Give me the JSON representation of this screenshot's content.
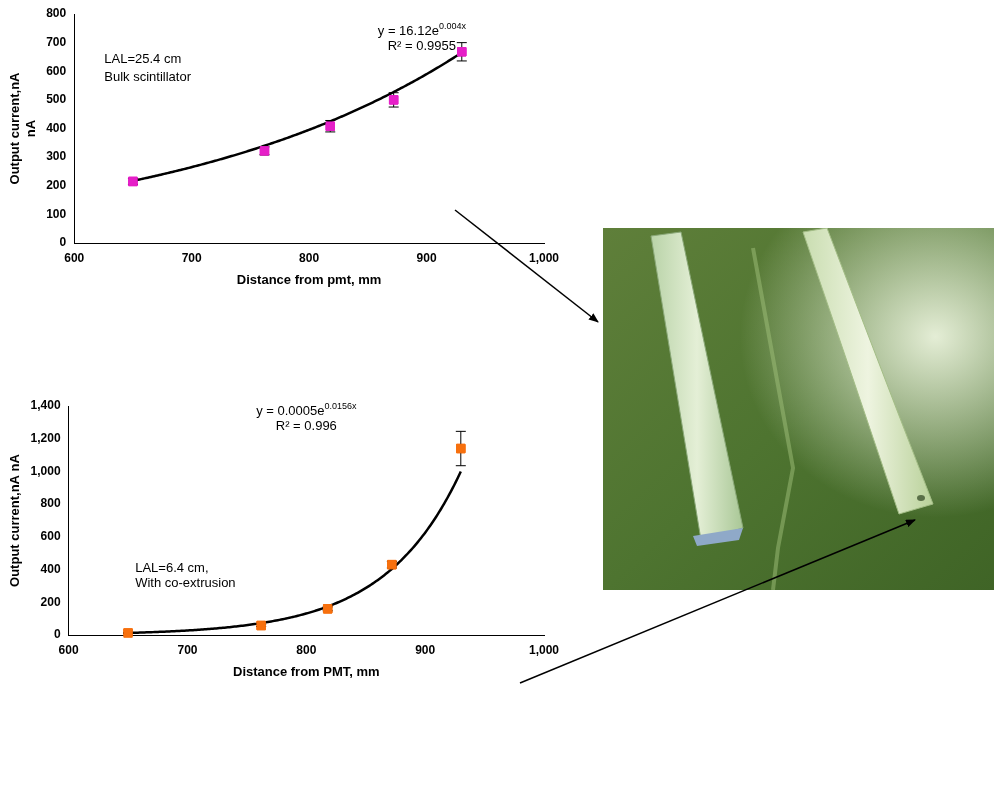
{
  "chart_data": [
    {
      "type": "scatter",
      "x_label": "Distance from pmt, mm",
      "y_label": "Output current,nA\nnA",
      "xlim": [
        600,
        1000
      ],
      "xticks": [
        600,
        700,
        800,
        900,
        1000
      ],
      "ylim": [
        0,
        800
      ],
      "yticks": [
        0,
        100,
        200,
        300,
        400,
        500,
        600,
        700,
        800
      ],
      "grid": false,
      "marker": "square",
      "color": "#e61fc8",
      "x": [
        650,
        762,
        818,
        872,
        930
      ],
      "values": [
        215,
        322,
        408,
        500,
        668
      ],
      "errors": [
        10,
        14,
        20,
        25,
        32
      ],
      "trendline": {
        "type": "exponential",
        "a": 16.12,
        "b": 0.004,
        "x_range": [
          650,
          930
        ]
      },
      "annotations": [
        "LAL=25.4 cm",
        "Bulk scintillator"
      ],
      "equation": {
        "text": "y = 16.12e",
        "exponent": "0.004x"
      },
      "r_squared": "R² = 0.9955"
    },
    {
      "type": "scatter",
      "x_label": "Distance from PMT, mm",
      "y_label": "Output current,nA nA",
      "xlim": [
        600,
        1000
      ],
      "xticks": [
        600,
        700,
        800,
        900,
        1000
      ],
      "ylim": [
        0,
        1400
      ],
      "yticks": [
        0,
        200,
        400,
        600,
        800,
        1000,
        1200,
        1400
      ],
      "grid": false,
      "marker": "square",
      "color": "#f7700e",
      "x": [
        650,
        762,
        818,
        872,
        930
      ],
      "values": [
        12,
        58,
        160,
        430,
        1140
      ],
      "errors": [
        3,
        6,
        12,
        20,
        105
      ],
      "trendline": {
        "type": "exponential",
        "a": 0.0005,
        "b": 0.0156,
        "x_range": [
          650,
          930
        ]
      },
      "annotations": [
        "LAL=6.4 cm,",
        "With co-extrusion"
      ],
      "equation": {
        "text": "y = 0.0005e",
        "exponent": "0.0156x"
      },
      "r_squared": "R² = 0.996"
    }
  ]
}
